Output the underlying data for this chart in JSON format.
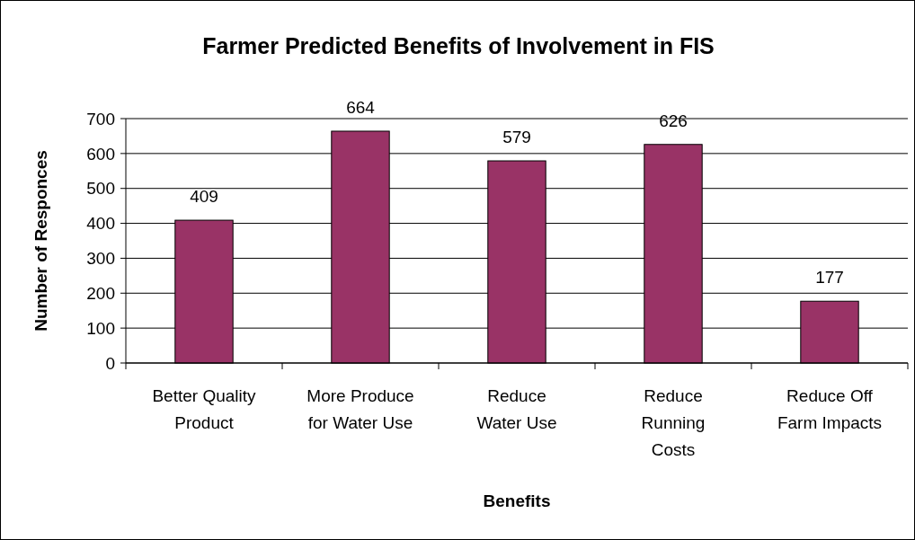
{
  "chart_data": {
    "type": "bar",
    "title": "Farmer Predicted Benefits of Involvement in FIS",
    "categories": [
      "Better Quality\nProduct",
      "More Produce\nfor Water Use",
      "Reduce\nWater Use",
      "Reduce\nRunning\nCosts",
      "Reduce Off\nFarm Impacts"
    ],
    "values": [
      409,
      664,
      579,
      626,
      177
    ],
    "color": "#993366",
    "xlabel": "Benefits",
    "ylabel": "Number of Responces",
    "ylim": [
      0,
      700
    ],
    "yticks": [
      0,
      100,
      200,
      300,
      400,
      500,
      600,
      700
    ],
    "grid": "y",
    "data_labels": true
  }
}
